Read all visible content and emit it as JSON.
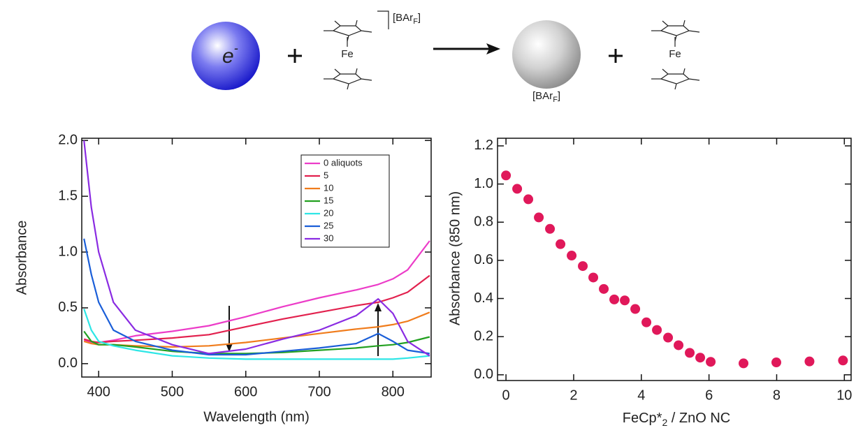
{
  "scheme": {
    "electron": {
      "text": "e",
      "sup": "-"
    },
    "iron": [
      "Fe",
      "Fe"
    ],
    "counterion": [
      {
        "text": "[BAr",
        "sub": "F",
        "end": "]"
      },
      {
        "text": "[BAr",
        "sub": "F",
        "end": "]"
      }
    ]
  },
  "chart_data": [
    {
      "type": "line",
      "x_label": "Wavelength (nm)",
      "y_label": "Absorbance",
      "x": [
        380,
        390,
        400,
        420,
        450,
        500,
        550,
        600,
        650,
        700,
        750,
        780,
        800,
        820,
        850
      ],
      "series": [
        {
          "name": "0 aliquots",
          "color": "#ec3cc8",
          "values": [
            0.21,
            0.19,
            0.19,
            0.21,
            0.25,
            0.29,
            0.34,
            0.42,
            0.51,
            0.59,
            0.66,
            0.71,
            0.76,
            0.84,
            1.1
          ]
        },
        {
          "name": "5",
          "color": "#e2214e",
          "values": [
            0.22,
            0.2,
            0.19,
            0.2,
            0.21,
            0.23,
            0.26,
            0.33,
            0.4,
            0.46,
            0.52,
            0.55,
            0.59,
            0.64,
            0.79
          ]
        },
        {
          "name": "10",
          "color": "#f07c1c",
          "values": [
            0.2,
            0.18,
            0.17,
            0.17,
            0.16,
            0.15,
            0.16,
            0.19,
            0.23,
            0.27,
            0.31,
            0.33,
            0.35,
            0.38,
            0.46
          ]
        },
        {
          "name": "15",
          "color": "#22a020",
          "values": [
            0.29,
            0.2,
            0.17,
            0.17,
            0.15,
            0.11,
            0.09,
            0.09,
            0.1,
            0.12,
            0.14,
            0.16,
            0.17,
            0.19,
            0.24
          ]
        },
        {
          "name": "20",
          "color": "#2ee6e6",
          "values": [
            0.49,
            0.3,
            0.2,
            0.16,
            0.12,
            0.07,
            0.05,
            0.04,
            0.04,
            0.04,
            0.04,
            0.04,
            0.04,
            0.05,
            0.07
          ]
        },
        {
          "name": "25",
          "color": "#1a5ed8",
          "values": [
            1.12,
            0.8,
            0.55,
            0.3,
            0.2,
            0.12,
            0.08,
            0.08,
            0.11,
            0.14,
            0.18,
            0.27,
            0.2,
            0.12,
            0.09
          ]
        },
        {
          "name": "30",
          "color": "#8a2be2",
          "values": [
            2.0,
            1.4,
            1.0,
            0.55,
            0.3,
            0.17,
            0.09,
            0.13,
            0.22,
            0.3,
            0.43,
            0.58,
            0.45,
            0.2,
            0.07
          ]
        }
      ],
      "xlim": [
        377,
        852
      ],
      "ylim": [
        -0.12,
        2.02
      ],
      "xticks": [
        400,
        500,
        600,
        700,
        800
      ],
      "yticks": [
        {
          "value": 0,
          "label": "0.0"
        },
        {
          "value": 0.5,
          "label": "0.5"
        },
        {
          "value": 1,
          "label": "1.0"
        },
        {
          "value": 1.5,
          "label": "1.5"
        },
        {
          "value": 2,
          "label": "2.0"
        }
      ],
      "legend": "upper right"
    },
    {
      "type": "scatter",
      "x_label": {
        "text": "FeCp*",
        "sub": "2",
        "end": " / ZnO NC"
      },
      "y_label": "Absorbance (850 nm)",
      "color": "#e0185a",
      "x": [
        0,
        0.33,
        0.66,
        0.97,
        1.3,
        1.61,
        1.94,
        2.27,
        2.58,
        2.89,
        3.2,
        3.51,
        3.82,
        4.15,
        4.46,
        4.79,
        5.1,
        5.43,
        5.74,
        6.05,
        7.02,
        7.99,
        8.97,
        9.96
      ],
      "values": [
        1.045,
        0.975,
        0.92,
        0.825,
        0.765,
        0.685,
        0.625,
        0.57,
        0.51,
        0.45,
        0.395,
        0.39,
        0.345,
        0.275,
        0.235,
        0.195,
        0.155,
        0.115,
        0.09,
        0.068,
        0.06,
        0.065,
        0.07,
        0.075
      ],
      "xlim": [
        -0.25,
        10.2
      ],
      "ylim": [
        -0.03,
        1.24
      ],
      "xticks": [
        0,
        2,
        4,
        6,
        8,
        10
      ],
      "yticks": [
        {
          "value": 0,
          "label": "0.0"
        },
        {
          "value": 0.2,
          "label": "0.2"
        },
        {
          "value": 0.4,
          "label": "0.4"
        },
        {
          "value": 0.6,
          "label": "0.6"
        },
        {
          "value": 0.8,
          "label": "0.8"
        },
        {
          "value": 1,
          "label": "1.0"
        },
        {
          "value": 1.2,
          "label": "1.2"
        }
      ]
    }
  ]
}
